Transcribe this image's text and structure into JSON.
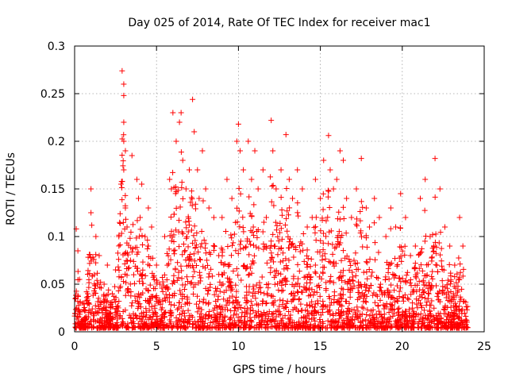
{
  "chart_data": {
    "type": "scatter",
    "title": "Day 025 of 2014, Rate Of TEC Index for receiver mac1",
    "xlabel": "GPS time / hours",
    "ylabel": "ROTI / TECUs",
    "xlim": [
      0,
      25
    ],
    "ylim": [
      0,
      0.3
    ],
    "xticks": [
      0,
      5,
      10,
      15,
      20,
      25
    ],
    "xtick_labels": [
      "0",
      "5",
      "10",
      "15",
      "20",
      "25"
    ],
    "yticks": [
      0,
      0.05,
      0.1,
      0.15,
      0.2,
      0.25,
      0.3
    ],
    "ytick_labels": [
      "0",
      "0.05",
      "0.1",
      "0.15",
      "0.2",
      "0.25",
      "0.3"
    ],
    "grid": true,
    "marker": "plus",
    "series_color": "#ff0000",
    "series": [
      {
        "name": "ROTI",
        "x": [
          0.1,
          0.2,
          0.3,
          0.5,
          0.8,
          1.0,
          1.0,
          1.2,
          1.3,
          1.5,
          1.8,
          2.0,
          2.3,
          2.5,
          2.7,
          2.9,
          3.0,
          3.0,
          3.0,
          3.0,
          3.0,
          3.1,
          3.1,
          3.2,
          3.5,
          3.8,
          3.9,
          4.0,
          4.1,
          4.3,
          4.5,
          4.5,
          4.7,
          5.0,
          5.2,
          5.5,
          5.8,
          6.0,
          6.2,
          6.4,
          6.5,
          6.6,
          6.8,
          7.0,
          7.2,
          7.3,
          7.5,
          7.6,
          7.8,
          8.0,
          8.2,
          8.5,
          8.8,
          9.0,
          9.3,
          9.6,
          9.9,
          10.0,
          10.1,
          10.3,
          10.6,
          10.8,
          11.0,
          11.2,
          11.5,
          11.7,
          12.0,
          12.1,
          12.3,
          12.6,
          12.9,
          13.1,
          13.3,
          13.6,
          13.9,
          14.2,
          14.5,
          14.7,
          15.0,
          15.2,
          15.5,
          15.6,
          15.8,
          16.0,
          16.2,
          16.4,
          16.6,
          16.9,
          17.2,
          17.5,
          17.8,
          18.0,
          18.3,
          18.6,
          19.0,
          19.3,
          19.6,
          19.9,
          20.2,
          20.5,
          20.8,
          21.1,
          21.4,
          21.7,
          22.0,
          22.3,
          22.6,
          22.9,
          23.2,
          23.5,
          23.7
        ],
        "y": [
          0.108,
          0.085,
          0.055,
          0.03,
          0.04,
          0.15,
          0.125,
          0.06,
          0.1,
          0.08,
          0.05,
          0.07,
          0.04,
          0.065,
          0.1,
          0.274,
          0.26,
          0.248,
          0.22,
          0.2,
          0.17,
          0.19,
          0.13,
          0.11,
          0.185,
          0.16,
          0.14,
          0.12,
          0.155,
          0.1,
          0.13,
          0.09,
          0.11,
          0.07,
          0.05,
          0.1,
          0.16,
          0.23,
          0.2,
          0.22,
          0.23,
          0.18,
          0.15,
          0.17,
          0.244,
          0.21,
          0.17,
          0.14,
          0.19,
          0.15,
          0.13,
          0.12,
          0.08,
          0.12,
          0.16,
          0.14,
          0.2,
          0.218,
          0.19,
          0.17,
          0.2,
          0.16,
          0.19,
          0.15,
          0.17,
          0.12,
          0.222,
          0.19,
          0.15,
          0.17,
          0.207,
          0.16,
          0.14,
          0.17,
          0.15,
          0.11,
          0.12,
          0.16,
          0.14,
          0.18,
          0.206,
          0.17,
          0.15,
          0.16,
          0.19,
          0.18,
          0.14,
          0.12,
          0.15,
          0.182,
          0.13,
          0.11,
          0.14,
          0.12,
          0.1,
          0.13,
          0.11,
          0.145,
          0.12,
          0.08,
          0.09,
          0.14,
          0.16,
          0.1,
          0.182,
          0.15,
          0.11,
          0.09,
          0.07,
          0.12,
          0.09
        ]
      }
    ],
    "background_band": {
      "x_min": 0,
      "x_max": 24,
      "y_min": 0.004,
      "y_max": 0.03
    }
  }
}
